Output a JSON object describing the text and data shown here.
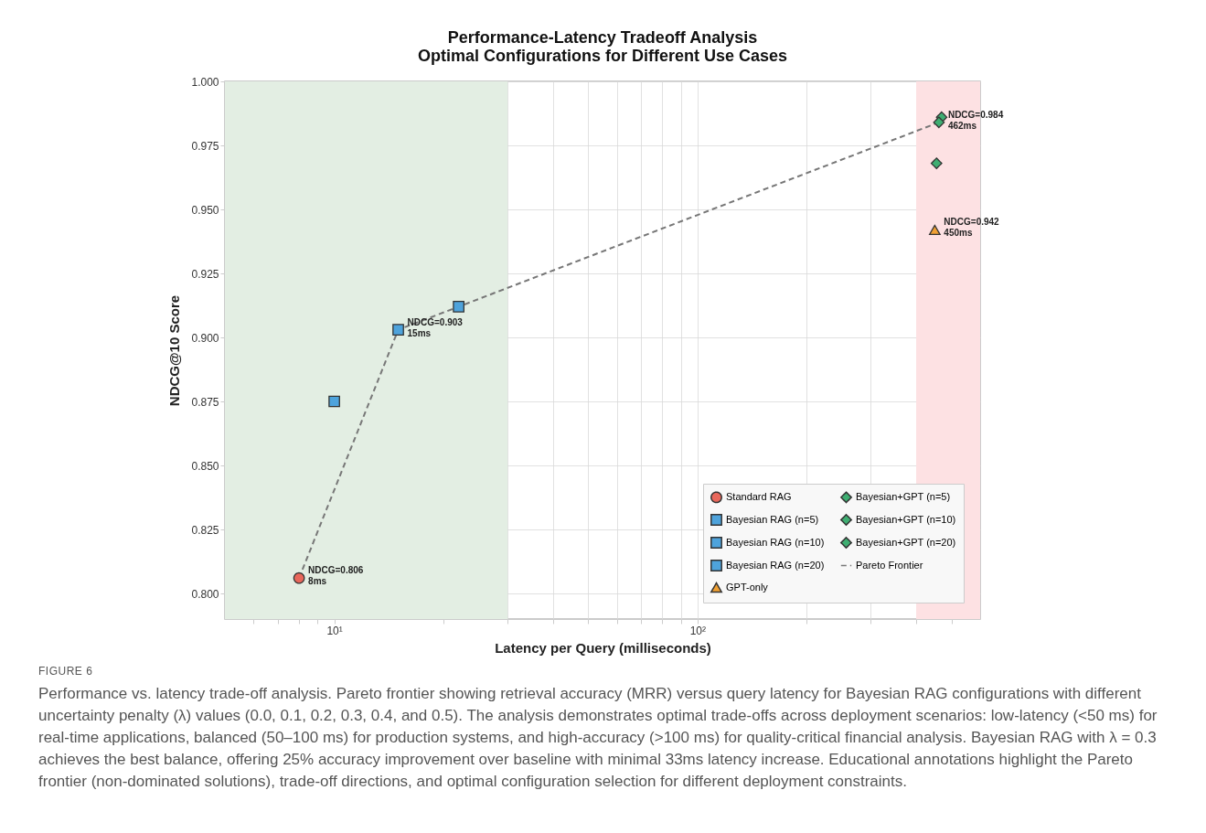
{
  "chart_data": {
    "type": "scatter",
    "title": "Performance-Latency Tradeoff Analysis",
    "subtitle": "Optimal Configurations for Different Use Cases",
    "xlabel": "Latency per Query (milliseconds)",
    "ylabel": "NDCG@10 Score",
    "log": "x",
    "xlim": [
      5,
      600
    ],
    "ylim": [
      0.79,
      1.0
    ],
    "xticks": [
      {
        "value": 6,
        "label": null
      },
      {
        "value": 7,
        "label": null
      },
      {
        "value": 8,
        "label": null
      },
      {
        "value": 9,
        "label": null
      },
      {
        "value": 10,
        "label": "10¹"
      },
      {
        "value": 20,
        "label": null
      },
      {
        "value": 30,
        "label": null
      },
      {
        "value": 40,
        "label": null
      },
      {
        "value": 50,
        "label": null
      },
      {
        "value": 60,
        "label": null
      },
      {
        "value": 70,
        "label": null
      },
      {
        "value": 80,
        "label": null
      },
      {
        "value": 90,
        "label": null
      },
      {
        "value": 100,
        "label": "10²"
      },
      {
        "value": 200,
        "label": null
      },
      {
        "value": 300,
        "label": null
      },
      {
        "value": 400,
        "label": null
      },
      {
        "value": 500,
        "label": null
      }
    ],
    "yticks": [
      {
        "value": 0.8,
        "label": "0.800"
      },
      {
        "value": 0.825,
        "label": "0.825"
      },
      {
        "value": 0.85,
        "label": "0.850"
      },
      {
        "value": 0.875,
        "label": "0.875"
      },
      {
        "value": 0.9,
        "label": "0.900"
      },
      {
        "value": 0.925,
        "label": "0.925"
      },
      {
        "value": 0.95,
        "label": "0.950"
      },
      {
        "value": 0.975,
        "label": "0.975"
      },
      {
        "value": 1.0,
        "label": "1.000"
      }
    ],
    "grid": true,
    "legend": "bottom right",
    "bands": [
      {
        "axis": "x",
        "from": 5,
        "to": 30,
        "color": "#e3eee3"
      },
      {
        "axis": "x",
        "from": 400,
        "to": 600,
        "color": "#fde1e3"
      }
    ],
    "series": [
      {
        "name": "Standard RAG",
        "type": "scatter",
        "marker": "circle",
        "color": "#e8675b",
        "x": [
          8
        ],
        "values": [
          0.806
        ]
      },
      {
        "name": "Bayesian RAG (n=5)",
        "type": "scatter",
        "marker": "square",
        "color": "#4ea3dc",
        "x": [
          10
        ],
        "values": [
          0.875
        ]
      },
      {
        "name": "Bayesian RAG (n=10)",
        "type": "scatter",
        "marker": "square",
        "color": "#4ea3dc",
        "x": [
          15
        ],
        "values": [
          0.903
        ]
      },
      {
        "name": "Bayesian RAG (n=20)",
        "type": "scatter",
        "marker": "square",
        "color": "#4ea3dc",
        "x": [
          22
        ],
        "values": [
          0.912
        ]
      },
      {
        "name": "GPT-only",
        "type": "scatter",
        "marker": "triangle",
        "color": "#f0a033",
        "x": [
          450
        ],
        "values": [
          0.942
        ]
      },
      {
        "name": "Bayesian+GPT (n=5)",
        "type": "scatter",
        "marker": "diamond",
        "color": "#3fae72",
        "x": [
          470
        ],
        "values": [
          0.986
        ]
      },
      {
        "name": "Bayesian+GPT (n=10)",
        "type": "scatter",
        "marker": "diamond",
        "color": "#3fae72",
        "x": [
          462
        ],
        "values": [
          0.984
        ]
      },
      {
        "name": "Bayesian+GPT (n=20)",
        "type": "scatter",
        "marker": "diamond",
        "color": "#3fae72",
        "x": [
          455
        ],
        "values": [
          0.968
        ]
      },
      {
        "name": "Pareto Frontier",
        "type": "line",
        "line_style": "dashed",
        "marker": "none",
        "color": "#777777",
        "x": [
          8,
          15,
          22,
          462
        ],
        "values": [
          0.806,
          0.903,
          0.912,
          0.984
        ]
      }
    ],
    "annotations": [
      {
        "text": "NDCG=0.806\n8ms",
        "x": 8,
        "y": 0.806
      },
      {
        "text": "NDCG=0.903\n15ms",
        "x": 15,
        "y": 0.903
      },
      {
        "text": "NDCG=0.942\n450ms",
        "x": 450,
        "y": 0.942
      },
      {
        "text": "NDCG=0.984\n462ms",
        "x": 462,
        "y": 0.984
      },
      "FIGURE 6",
      "Performance vs. latency trade-off analysis. Pareto frontier showing retrieval accuracy (MRR) versus query latency for Bayesian RAG configurations with different uncertainty penalty (λ) values (0.0, 0.1, 0.2, 0.3, 0.4, and 0.5). The analysis demonstrates optimal trade-offs across deployment scenarios: low-latency (<50 ms) for real-time applications, balanced (50–100 ms) for production systems, and high-accuracy (>100 ms) for quality-critical financial analysis. Bayesian RAG with λ = 0.3 achieves the best balance, offering 25% accuracy improvement over baseline with minimal 33ms latency increase. Educational annotations highlight the Pareto frontier (non-dominated solutions), trade-off directions, and optimal configuration selection for different deployment constraints."
    ]
  }
}
